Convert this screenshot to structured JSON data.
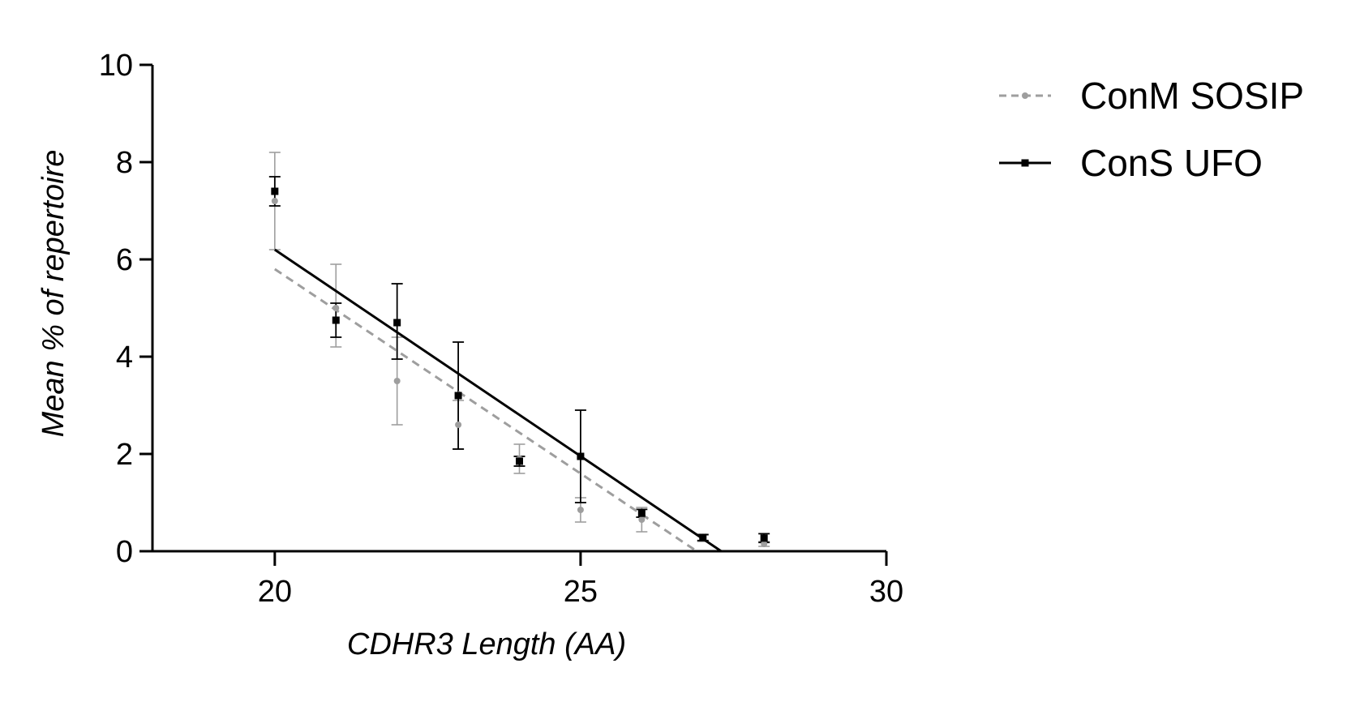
{
  "chart_data": {
    "type": "scatter",
    "title": "",
    "xlabel": "CDHR3 Length (AA)",
    "ylabel": "Mean % of repertoire",
    "xlim": [
      18,
      30
    ],
    "ylim": [
      0,
      10
    ],
    "x_ticks": [
      "20",
      "25",
      "30"
    ],
    "y_ticks": [
      "0",
      "2",
      "4",
      "6",
      "8",
      "10"
    ],
    "legend_position": "top-right",
    "grid": false,
    "series": [
      {
        "name": "ConM SOSIP",
        "color": "#9e9e9e",
        "marker": "circle",
        "line_style": "dashed",
        "points": [
          {
            "x": 20,
            "y": 7.2,
            "lo": 6.2,
            "hi": 8.2
          },
          {
            "x": 21,
            "y": 5.0,
            "lo": 4.2,
            "hi": 5.9
          },
          {
            "x": 22,
            "y": 3.5,
            "lo": 2.6,
            "hi": 4.4
          },
          {
            "x": 23,
            "y": 2.6,
            "lo": 2.1,
            "hi": 3.1
          },
          {
            "x": 24,
            "y": 1.9,
            "lo": 1.6,
            "hi": 2.2
          },
          {
            "x": 25,
            "y": 0.85,
            "lo": 0.6,
            "hi": 1.1
          },
          {
            "x": 26,
            "y": 0.65,
            "lo": 0.4,
            "hi": 0.9
          },
          {
            "x": 27,
            "y": 0.3,
            "lo": 0.2,
            "hi": 0.35
          },
          {
            "x": 28,
            "y": 0.15,
            "lo": 0.1,
            "hi": 0.2
          }
        ],
        "fit": {
          "x": [
            20,
            26.9
          ],
          "y": [
            5.8,
            0
          ]
        }
      },
      {
        "name": "ConS UFO",
        "color": "#000000",
        "marker": "square",
        "line_style": "solid",
        "points": [
          {
            "x": 20,
            "y": 7.4,
            "lo": 7.1,
            "hi": 7.7
          },
          {
            "x": 21,
            "y": 4.75,
            "lo": 4.4,
            "hi": 5.1
          },
          {
            "x": 22,
            "y": 4.7,
            "lo": 3.95,
            "hi": 5.5
          },
          {
            "x": 23,
            "y": 3.2,
            "lo": 2.1,
            "hi": 4.3
          },
          {
            "x": 24,
            "y": 1.85,
            "lo": 1.75,
            "hi": 1.95
          },
          {
            "x": 25,
            "y": 1.95,
            "lo": 1.0,
            "hi": 2.9
          },
          {
            "x": 26,
            "y": 0.78,
            "lo": 0.7,
            "hi": 0.86
          },
          {
            "x": 27,
            "y": 0.28,
            "lo": 0.22,
            "hi": 0.34
          },
          {
            "x": 28,
            "y": 0.27,
            "lo": 0.18,
            "hi": 0.36
          }
        ],
        "fit": {
          "x": [
            20,
            27.3
          ],
          "y": [
            6.2,
            0
          ]
        }
      }
    ]
  }
}
